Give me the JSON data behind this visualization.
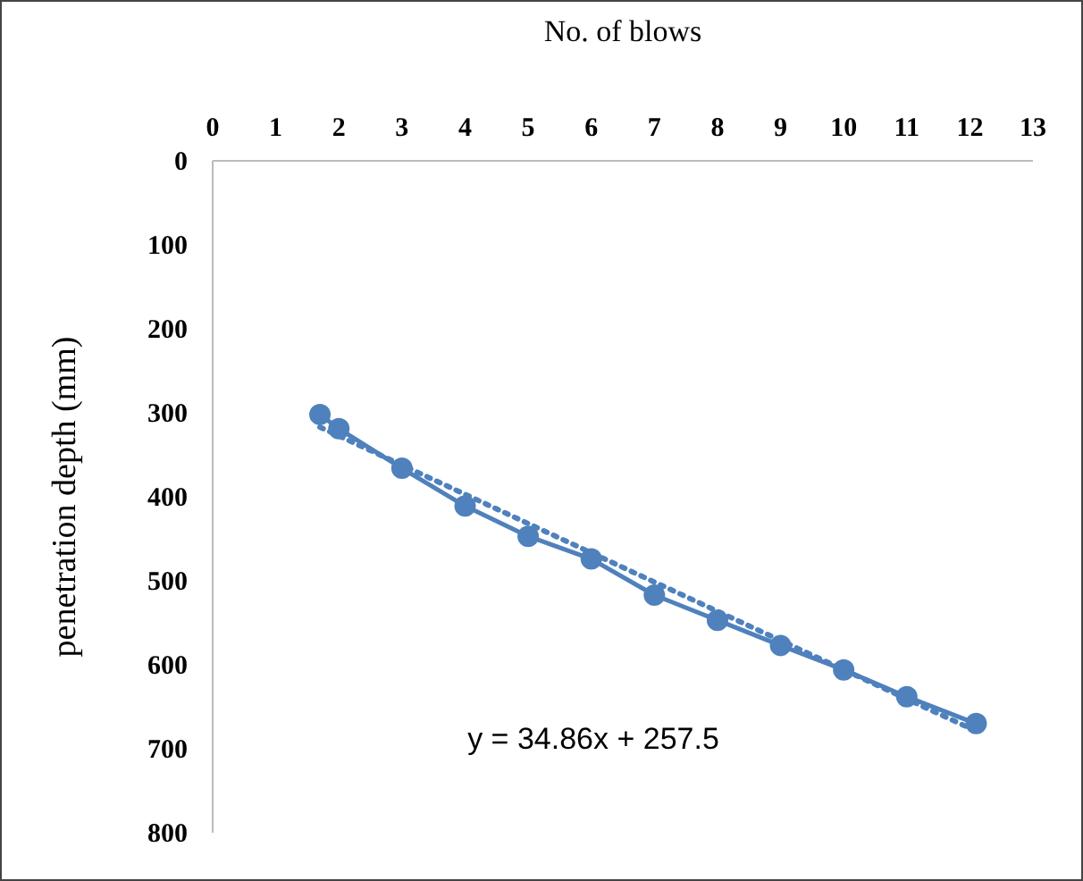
{
  "chart_data": {
    "type": "line",
    "xlabel": "No. of blows",
    "ylabel": "penetration depth (mm)",
    "xlim": [
      0,
      13
    ],
    "xticks": [
      0,
      1,
      2,
      3,
      4,
      5,
      6,
      7,
      8,
      9,
      10,
      11,
      12,
      13
    ],
    "ylim": [
      800,
      0
    ],
    "yticks": [
      0,
      100,
      200,
      300,
      400,
      500,
      600,
      700,
      800
    ],
    "grid": false,
    "marker": "circle",
    "line_style": "solid",
    "annotations": [
      "y = 34.86x + 257.5"
    ],
    "series": [
      {
        "color": "#4f81bd",
        "x": [
          1.7,
          2,
          3,
          4,
          5,
          6,
          7,
          8,
          9,
          10,
          11,
          12.1
        ],
        "values": [
          302,
          319,
          366,
          411,
          447,
          474,
          517,
          547,
          577,
          606,
          638,
          670
        ]
      },
      {
        "type": "line",
        "color": "#4f81bd",
        "marker": "none",
        "line_style": "dotted",
        "x": [
          1.7,
          12.1
        ],
        "values": [
          317,
          679
        ]
      }
    ]
  }
}
